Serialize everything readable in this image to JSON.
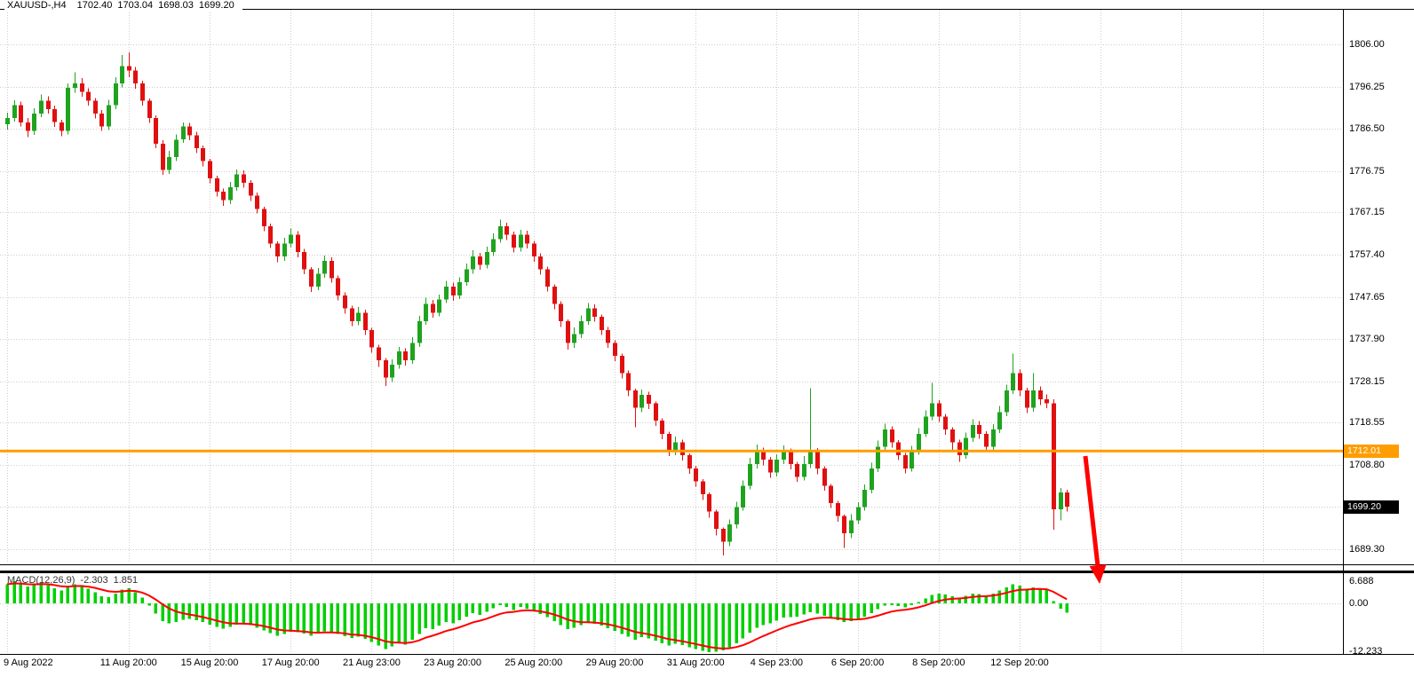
{
  "window": {
    "symbol": "XAUUSD-,H4",
    "ohlc": {
      "open": "1702.40",
      "high": "1703.04",
      "low": "1698.03",
      "close": "1699.20"
    }
  },
  "price_axis": {
    "labels": [
      "1806.00",
      "1796.25",
      "1786.50",
      "1776.75",
      "1767.15",
      "1757.40",
      "1747.65",
      "1737.90",
      "1728.15",
      "1718.55",
      "1708.80",
      "1699.05",
      "1689.30"
    ],
    "current_price": {
      "value": "1699.20",
      "bg": "#000000",
      "text_color": "#FFFFFF"
    },
    "price_line": {
      "value": "1712.01",
      "color": "#FF9D00",
      "text_color": "#FFFFFF"
    }
  },
  "time_axis": {
    "ticks": [
      {
        "label": "9 Aug 2022",
        "bar": 0
      },
      {
        "label": "11 Aug 20:00",
        "bar": 18
      },
      {
        "label": "15 Aug 20:00",
        "bar": 30
      },
      {
        "label": "17 Aug 20:00",
        "bar": 42
      },
      {
        "label": "21 Aug 23:00",
        "bar": 54
      },
      {
        "label": "23 Aug 20:00",
        "bar": 66
      },
      {
        "label": "25 Aug 20:00",
        "bar": 78
      },
      {
        "label": "29 Aug 20:00",
        "bar": 90
      },
      {
        "label": "31 Aug 20:00",
        "bar": 102
      },
      {
        "label": "4 Sep 23:00",
        "bar": 114
      },
      {
        "label": "6 Sep 20:00",
        "bar": 126
      },
      {
        "label": "8 Sep 20:00",
        "bar": 138
      },
      {
        "label": "12 Sep 20:00",
        "bar": 150
      }
    ]
  },
  "indicator_pane": {
    "label": {
      "name": "MACD(12,26,9)",
      "main_value": "-2.303",
      "signal_value": "1.851"
    },
    "axis_labels": [
      "6.688",
      "0.00",
      "-12.233"
    ]
  },
  "annotations": {
    "arrow": {
      "color": "#FF0000",
      "width": 5,
      "tail": [
        1222,
        514
      ],
      "head_base": [
        1236,
        638
      ],
      "head": [
        [
          1238,
          658
        ],
        [
          1226.6,
          638
        ],
        [
          1245.6,
          636.3
        ]
      ]
    }
  },
  "chart_data": {
    "type": "candlestick",
    "symbol": "XAUUSD",
    "timeframe": "H4",
    "title": "XAUUSD-,H4 1702.40 1703.04 1698.03 1699.20",
    "price_line_value": 1712.01,
    "last_price": 1699.2,
    "price_axis_range": [
      1689.3,
      1806.0
    ],
    "extra_grid_bars": [
      162,
      174,
      186
    ],
    "ohlc_series": [
      [
        1787.5,
        1790.2,
        1786.3,
        1789.0
      ],
      [
        1789.0,
        1793.1,
        1788.2,
        1792.0
      ],
      [
        1792.0,
        1792.8,
        1787.0,
        1788.0
      ],
      [
        1788.0,
        1789.0,
        1784.6,
        1786.0
      ],
      [
        1786.0,
        1791.2,
        1785.1,
        1790.0
      ],
      [
        1790.0,
        1794.4,
        1789.2,
        1793.0
      ],
      [
        1793.0,
        1794.0,
        1790.0,
        1791.0
      ],
      [
        1791.0,
        1791.8,
        1786.9,
        1788.0
      ],
      [
        1788.0,
        1788.6,
        1784.8,
        1786.0
      ],
      [
        1786.0,
        1797.0,
        1785.2,
        1796.0
      ],
      [
        1796.0,
        1799.5,
        1794.8,
        1797.0
      ],
      [
        1797.0,
        1798.2,
        1793.9,
        1795.0
      ],
      [
        1795.0,
        1795.8,
        1791.8,
        1793.0
      ],
      [
        1793.0,
        1793.6,
        1788.9,
        1790.0
      ],
      [
        1790.0,
        1790.8,
        1786.0,
        1787.0
      ],
      [
        1787.0,
        1793.2,
        1786.2,
        1792.0
      ],
      [
        1792.0,
        1798.4,
        1791.0,
        1797.0
      ],
      [
        1797.0,
        1803.5,
        1796.1,
        1801.0
      ],
      [
        1801.0,
        1804.2,
        1798.4,
        1800.0
      ],
      [
        1800.0,
        1800.8,
        1795.7,
        1797.0
      ],
      [
        1797.0,
        1797.6,
        1791.9,
        1793.0
      ],
      [
        1793.0,
        1793.5,
        1787.8,
        1789.0
      ],
      [
        1789.0,
        1789.6,
        1782.0,
        1783.0
      ],
      [
        1783.0,
        1783.8,
        1775.9,
        1777.0
      ],
      [
        1777.0,
        1781.4,
        1776.1,
        1780.0
      ],
      [
        1780.0,
        1785.2,
        1779.0,
        1784.0
      ],
      [
        1784.0,
        1788.0,
        1783.2,
        1787.0
      ],
      [
        1787.0,
        1787.9,
        1783.8,
        1785.0
      ],
      [
        1785.0,
        1785.8,
        1780.9,
        1782.0
      ],
      [
        1782.0,
        1782.6,
        1777.8,
        1779.0
      ],
      [
        1779.0,
        1779.5,
        1773.9,
        1775.0
      ],
      [
        1775.0,
        1775.6,
        1770.8,
        1772.0
      ],
      [
        1772.0,
        1772.7,
        1768.7,
        1770.0
      ],
      [
        1770.0,
        1774.2,
        1769.1,
        1773.0
      ],
      [
        1773.0,
        1777.1,
        1772.2,
        1776.0
      ],
      [
        1776.0,
        1776.9,
        1772.9,
        1774.0
      ],
      [
        1774.0,
        1774.6,
        1769.8,
        1771.0
      ],
      [
        1771.0,
        1771.7,
        1766.9,
        1768.0
      ],
      [
        1768.0,
        1768.5,
        1762.8,
        1764.0
      ],
      [
        1764.0,
        1764.6,
        1758.9,
        1760.0
      ],
      [
        1760.0,
        1760.5,
        1755.7,
        1757.0
      ],
      [
        1757.0,
        1761.3,
        1756.0,
        1760.0
      ],
      [
        1760.0,
        1763.4,
        1759.0,
        1762.0
      ],
      [
        1762.0,
        1762.8,
        1756.8,
        1758.0
      ],
      [
        1758.0,
        1758.7,
        1752.9,
        1754.0
      ],
      [
        1754.0,
        1754.5,
        1748.8,
        1750.0
      ],
      [
        1750.0,
        1754.3,
        1749.2,
        1753.0
      ],
      [
        1753.0,
        1757.2,
        1752.1,
        1756.0
      ],
      [
        1756.0,
        1756.8,
        1750.9,
        1752.0
      ],
      [
        1752.0,
        1752.6,
        1746.8,
        1748.0
      ],
      [
        1748.0,
        1748.7,
        1743.8,
        1745.0
      ],
      [
        1745.0,
        1745.6,
        1740.9,
        1742.0
      ],
      [
        1742.0,
        1745.3,
        1741.1,
        1744.0
      ],
      [
        1744.0,
        1744.7,
        1738.8,
        1740.0
      ],
      [
        1740.0,
        1740.5,
        1734.7,
        1736.0
      ],
      [
        1736.0,
        1736.6,
        1731.4,
        1733.0
      ],
      [
        1733.0,
        1733.5,
        1727.0,
        1729.0
      ],
      [
        1729.0,
        1733.2,
        1728.0,
        1732.0
      ],
      [
        1732.0,
        1736.1,
        1731.0,
        1735.0
      ],
      [
        1735.0,
        1735.8,
        1731.8,
        1733.0
      ],
      [
        1733.0,
        1738.3,
        1732.2,
        1737.0
      ],
      [
        1737.0,
        1743.2,
        1736.1,
        1742.0
      ],
      [
        1742.0,
        1747.4,
        1741.2,
        1746.0
      ],
      [
        1746.0,
        1746.9,
        1742.8,
        1744.0
      ],
      [
        1744.0,
        1748.2,
        1743.1,
        1747.0
      ],
      [
        1747.0,
        1751.3,
        1746.2,
        1750.0
      ],
      [
        1750.0,
        1750.9,
        1746.7,
        1748.0
      ],
      [
        1748.0,
        1752.2,
        1747.1,
        1751.0
      ],
      [
        1751.0,
        1755.3,
        1750.2,
        1754.0
      ],
      [
        1754.0,
        1758.4,
        1753.0,
        1757.0
      ],
      [
        1757.0,
        1757.8,
        1753.9,
        1755.0
      ],
      [
        1755.0,
        1759.2,
        1754.2,
        1758.0
      ],
      [
        1758.0,
        1762.3,
        1757.1,
        1761.0
      ],
      [
        1761.0,
        1765.5,
        1760.2,
        1764.0
      ],
      [
        1764.0,
        1764.8,
        1760.8,
        1762.0
      ],
      [
        1762.0,
        1762.7,
        1757.9,
        1759.0
      ],
      [
        1759.0,
        1763.1,
        1758.1,
        1762.0
      ],
      [
        1762.0,
        1762.9,
        1758.8,
        1760.0
      ],
      [
        1760.0,
        1760.6,
        1755.8,
        1757.0
      ],
      [
        1757.0,
        1757.7,
        1752.8,
        1754.0
      ],
      [
        1754.0,
        1754.6,
        1748.9,
        1750.0
      ],
      [
        1750.0,
        1750.5,
        1744.8,
        1746.0
      ],
      [
        1746.0,
        1746.6,
        1740.7,
        1742.0
      ],
      [
        1742.0,
        1742.4,
        1735.5,
        1737.0
      ],
      [
        1737.0,
        1740.6,
        1735.9,
        1739.0
      ],
      [
        1739.0,
        1743.3,
        1738.1,
        1742.0
      ],
      [
        1742.0,
        1746.2,
        1741.2,
        1745.0
      ],
      [
        1745.0,
        1745.9,
        1741.9,
        1743.0
      ],
      [
        1743.0,
        1743.6,
        1738.8,
        1740.0
      ],
      [
        1740.0,
        1740.7,
        1735.9,
        1737.0
      ],
      [
        1737.0,
        1737.6,
        1732.8,
        1734.0
      ],
      [
        1734.0,
        1734.5,
        1728.8,
        1730.0
      ],
      [
        1730.0,
        1730.6,
        1724.7,
        1726.0
      ],
      [
        1726.0,
        1726.4,
        1717.5,
        1722.0
      ],
      [
        1722.0,
        1726.2,
        1721.0,
        1725.0
      ],
      [
        1725.0,
        1725.7,
        1721.7,
        1723.0
      ],
      [
        1723.0,
        1723.5,
        1717.8,
        1719.0
      ],
      [
        1719.0,
        1719.6,
        1714.7,
        1716.0
      ],
      [
        1716.0,
        1716.5,
        1710.8,
        1712.0
      ],
      [
        1712.0,
        1715.4,
        1711.0,
        1714.0
      ],
      [
        1714.0,
        1714.6,
        1709.8,
        1711.0
      ],
      [
        1711.0,
        1711.5,
        1706.7,
        1708.0
      ],
      [
        1708.0,
        1708.6,
        1703.8,
        1705.0
      ],
      [
        1705.0,
        1705.5,
        1700.7,
        1702.0
      ],
      [
        1702.0,
        1702.4,
        1696.6,
        1698.0
      ],
      [
        1698.0,
        1698.4,
        1692.5,
        1694.0
      ],
      [
        1694.0,
        1694.3,
        1687.9,
        1691.0
      ],
      [
        1691.0,
        1696.2,
        1690.0,
        1695.0
      ],
      [
        1695.0,
        1700.3,
        1694.1,
        1699.0
      ],
      [
        1699.0,
        1705.2,
        1698.2,
        1704.0
      ],
      [
        1704.0,
        1710.4,
        1703.1,
        1709.0
      ],
      [
        1709.0,
        1713.5,
        1708.0,
        1712.0
      ],
      [
        1712.0,
        1712.8,
        1708.7,
        1710.0
      ],
      [
        1710.0,
        1710.6,
        1705.8,
        1707.0
      ],
      [
        1707.0,
        1711.2,
        1706.1,
        1710.0
      ],
      [
        1710.0,
        1713.3,
        1709.0,
        1712.0
      ],
      [
        1712.0,
        1712.6,
        1707.8,
        1709.0
      ],
      [
        1709.0,
        1709.5,
        1704.9,
        1706.0
      ],
      [
        1706.0,
        1710.8,
        1705.2,
        1709.0
      ],
      [
        1709.0,
        1726.5,
        1708.1,
        1712.0
      ],
      [
        1712.0,
        1712.7,
        1706.6,
        1708.0
      ],
      [
        1708.0,
        1708.5,
        1702.8,
        1704.0
      ],
      [
        1704.0,
        1704.4,
        1698.8,
        1700.0
      ],
      [
        1700.0,
        1700.5,
        1695.7,
        1697.0
      ],
      [
        1697.0,
        1697.3,
        1689.6,
        1693.0
      ],
      [
        1693.0,
        1697.4,
        1691.9,
        1696.0
      ],
      [
        1696.0,
        1700.2,
        1695.1,
        1699.0
      ],
      [
        1699.0,
        1704.3,
        1698.2,
        1703.0
      ],
      [
        1703.0,
        1709.3,
        1702.2,
        1708.0
      ],
      [
        1708.0,
        1714.4,
        1707.1,
        1713.0
      ],
      [
        1713.0,
        1718.3,
        1712.2,
        1717.0
      ],
      [
        1717.0,
        1717.7,
        1712.8,
        1714.0
      ],
      [
        1714.0,
        1714.5,
        1709.9,
        1711.0
      ],
      [
        1711.0,
        1711.6,
        1706.8,
        1708.0
      ],
      [
        1708.0,
        1713.2,
        1707.2,
        1712.0
      ],
      [
        1712.0,
        1717.3,
        1711.1,
        1716.0
      ],
      [
        1716.0,
        1721.4,
        1715.2,
        1720.0
      ],
      [
        1720.0,
        1727.8,
        1719.1,
        1723.0
      ],
      [
        1723.0,
        1723.8,
        1718.7,
        1720.0
      ],
      [
        1720.0,
        1720.6,
        1715.8,
        1717.0
      ],
      [
        1717.0,
        1717.5,
        1712.0,
        1714.0
      ],
      [
        1714.0,
        1714.6,
        1709.5,
        1711.0
      ],
      [
        1711.0,
        1716.3,
        1710.2,
        1715.0
      ],
      [
        1715.0,
        1719.4,
        1714.1,
        1718.0
      ],
      [
        1718.0,
        1718.9,
        1714.8,
        1716.0
      ],
      [
        1716.0,
        1716.6,
        1711.9,
        1713.0
      ],
      [
        1713.0,
        1718.2,
        1712.1,
        1717.0
      ],
      [
        1717.0,
        1722.4,
        1716.2,
        1721.0
      ],
      [
        1721.0,
        1727.3,
        1720.1,
        1726.0
      ],
      [
        1726.0,
        1734.5,
        1725.2,
        1730.0
      ],
      [
        1730.0,
        1730.8,
        1724.7,
        1726.0
      ],
      [
        1726.0,
        1726.6,
        1720.8,
        1722.0
      ],
      [
        1722.0,
        1730.0,
        1721.1,
        1726.0
      ],
      [
        1726.0,
        1726.9,
        1722.6,
        1724.0
      ],
      [
        1724.0,
        1725.1,
        1721.9,
        1723.0
      ],
      [
        1723.0,
        1724.0,
        1693.8,
        1698.5
      ],
      [
        1698.5,
        1703.5,
        1696.0,
        1702.4
      ],
      [
        1702.4,
        1703.04,
        1698.03,
        1699.2
      ]
    ],
    "indicator": {
      "type": "macd_histogram",
      "params": "12,26,9",
      "range": [
        -12.233,
        6.688
      ],
      "main_last": -2.303,
      "signal_last": 1.851,
      "histogram": [
        4.8,
        5.6,
        5.0,
        4.2,
        4.6,
        5.2,
        4.6,
        3.8,
        3.2,
        4.0,
        4.8,
        4.4,
        3.7,
        2.8,
        1.8,
        1.6,
        2.4,
        3.4,
        3.8,
        2.8,
        1.4,
        -0.6,
        -2.6,
        -4.4,
        -5.0,
        -4.7,
        -4.1,
        -3.9,
        -4.2,
        -4.7,
        -5.3,
        -5.9,
        -6.3,
        -5.9,
        -5.3,
        -5.2,
        -5.5,
        -6.1,
        -6.8,
        -7.5,
        -8.1,
        -7.7,
        -7.1,
        -7.2,
        -7.6,
        -8.1,
        -7.6,
        -7.0,
        -7.2,
        -7.7,
        -8.2,
        -8.7,
        -8.3,
        -8.9,
        -9.7,
        -10.6,
        -11.5,
        -10.8,
        -10.0,
        -10.3,
        -9.1,
        -7.7,
        -6.2,
        -6.4,
        -5.6,
        -4.7,
        -5.0,
        -4.2,
        -3.3,
        -2.5,
        -2.9,
        -2.1,
        -1.2,
        -0.4,
        -0.9,
        -1.7,
        -0.9,
        -1.3,
        -2.0,
        -2.7,
        -3.5,
        -4.4,
        -5.4,
        -6.5,
        -6.1,
        -5.4,
        -4.8,
        -5.1,
        -5.6,
        -6.2,
        -6.9,
        -7.7,
        -8.4,
        -9.1,
        -8.5,
        -8.8,
        -9.4,
        -10.0,
        -10.6,
        -10.1,
        -10.5,
        -11.0,
        -11.5,
        -11.9,
        -12.2,
        -12.1,
        -11.8,
        -11.0,
        -10.0,
        -8.8,
        -7.4,
        -6.1,
        -5.4,
        -5.0,
        -4.3,
        -3.6,
        -3.4,
        -3.3,
        -2.8,
        -2.2,
        -2.6,
        -3.1,
        -3.7,
        -4.2,
        -4.7,
        -4.4,
        -4.0,
        -3.3,
        -2.4,
        -1.5,
        -0.6,
        -0.4,
        -0.7,
        -1.0,
        -0.5,
        0.3,
        1.2,
        2.1,
        2.5,
        2.2,
        1.8,
        1.5,
        1.9,
        2.4,
        2.3,
        2.0,
        2.5,
        3.2,
        4.0,
        4.8,
        4.4,
        3.7,
        4.0,
        3.7,
        3.3,
        0.6,
        -1.3,
        -2.303
      ]
    },
    "colors": {
      "background": "#FFFFFF",
      "bull": "#1FA31F",
      "bear": "#E01010",
      "hist": "#00CF00",
      "signal": "#FF0000",
      "grid": "#CDCDCD",
      "price_line": "#FF9D00"
    }
  }
}
